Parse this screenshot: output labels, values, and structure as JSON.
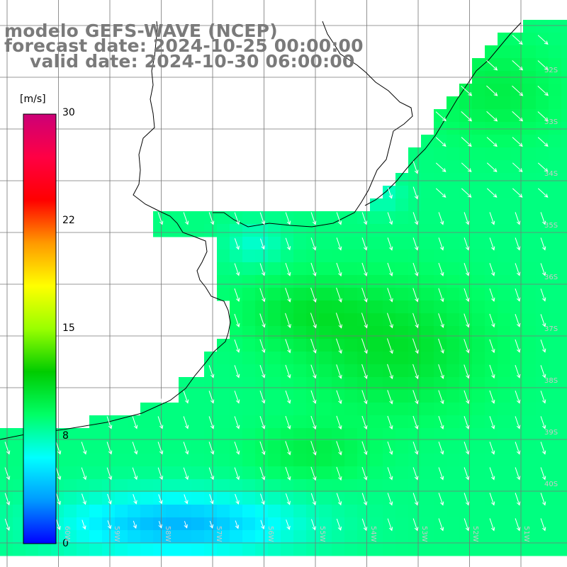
{
  "title": {
    "model": "modelo GEFS-WAVE (NCEP)",
    "forecast": "forecast date: 2024-10-25 00:00:00",
    "valid": "valid date: 2024-10-30 06:00:00"
  },
  "colorbar": {
    "unit": "[m/s]",
    "min": 0,
    "max": 30,
    "ticks": [
      "30",
      "22",
      "15",
      "8",
      "0"
    ],
    "colors": [
      "#0000ff",
      "#0099ff",
      "#00ffff",
      "#00ff66",
      "#00cc00",
      "#99ff00",
      "#ffff00",
      "#ff9900",
      "#ff0000",
      "#ff0044",
      "#cc0077"
    ]
  },
  "map": {
    "land_color": "#ffffff",
    "grid_color": "#777777",
    "arrow_color": "#ffffff",
    "lat_labels": [
      "32S",
      "33S",
      "34S",
      "35S",
      "36S",
      "37S",
      "38S",
      "39S",
      "40S"
    ],
    "lon_labels": [
      "60W",
      "59W",
      "58W",
      "57W",
      "56W",
      "55W",
      "54W",
      "53W",
      "52W",
      "51W"
    ]
  }
}
